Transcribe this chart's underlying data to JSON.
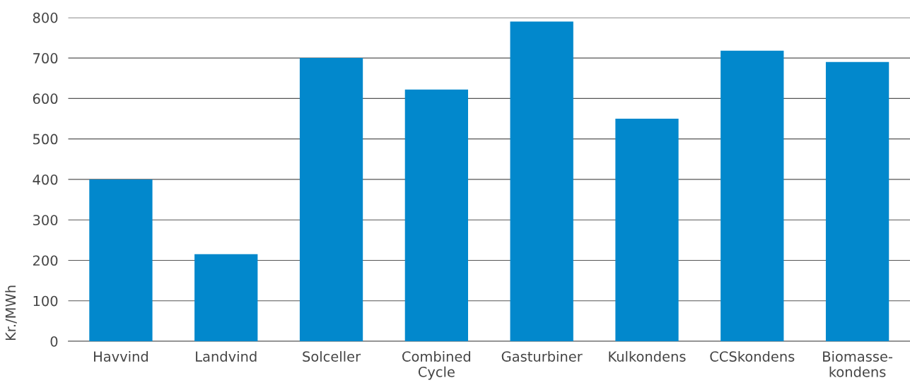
{
  "chart_data": {
    "type": "bar",
    "ylabel": "Kr./MWh",
    "categories": [
      "Havvind",
      "Landvind",
      "Solceller",
      "Combined\nCycle",
      "Gasturbiner",
      "Kulkondens",
      "CCSkondens",
      "Biomasse-\nkondens"
    ],
    "values": [
      400,
      215,
      700,
      622,
      790,
      550,
      718,
      690
    ],
    "color": "#0288cc",
    "ylim": [
      0,
      800
    ],
    "yticks": [
      0,
      100,
      200,
      300,
      400,
      500,
      600,
      700,
      800
    ],
    "grid": "y"
  }
}
